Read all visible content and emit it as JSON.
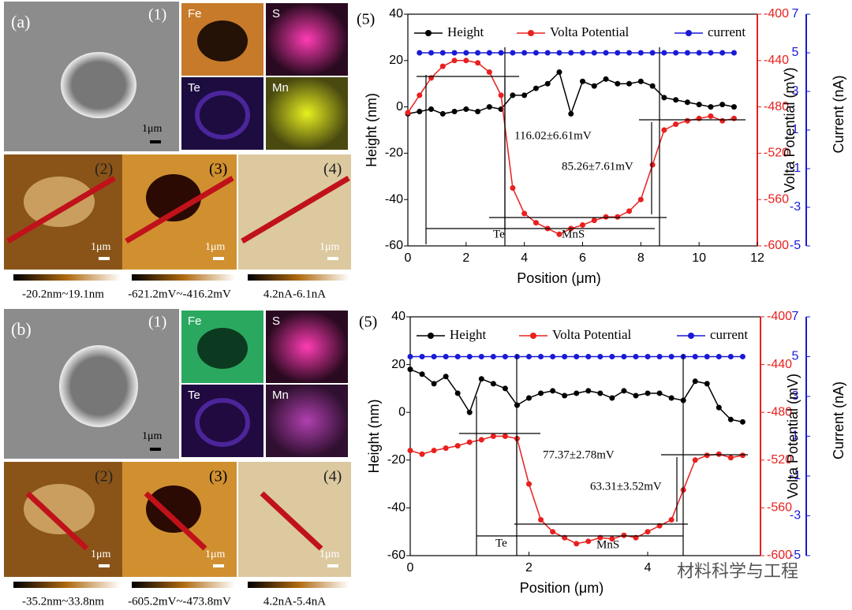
{
  "panels": [
    {
      "label": "(a)",
      "sem": "(1)",
      "maps": [
        "Fe",
        "S",
        "Te",
        "Mn"
      ],
      "scale": "1μm",
      "afm": [
        "(2)",
        "(3)",
        "(4)"
      ],
      "ranges": [
        "-20.2nm~19.1nm",
        "-621.2mV~-416.2mV",
        "4.2nA-6.1nA"
      ]
    },
    {
      "label": "(b)",
      "sem": "(1)",
      "maps": [
        "Fe",
        "S",
        "Te",
        "Mn"
      ],
      "scale": "1μm",
      "afm": [
        "(2)",
        "(3)",
        "(4)"
      ],
      "ranges": [
        "-35.2nm~33.8nm",
        "-605.2mV~-473.8mV",
        "4.2nA-5.4nA"
      ]
    }
  ],
  "watermark": "材料科学与工程",
  "chart_data": [
    {
      "type": "line",
      "panel": "(5)",
      "xlabel": "Position (μm)",
      "ylabel": "Height (nm)",
      "y2label": "Volta Potential (mV)",
      "y3label": "Current (nA)",
      "xlim": [
        0,
        12
      ],
      "xticks": [
        0,
        2,
        4,
        6,
        8,
        10,
        12
      ],
      "ylim": [
        -60,
        40
      ],
      "yticks": [
        -60,
        -40,
        -20,
        0,
        20,
        40
      ],
      "y2lim": [
        -600,
        -400
      ],
      "y2ticks": [
        -600,
        -560,
        -520,
        -480,
        -440,
        -400
      ],
      "y3lim": [
        -5,
        7
      ],
      "y3ticks": [
        -5,
        -3,
        -1,
        1,
        3,
        5,
        7
      ],
      "x": [
        0,
        0.4,
        0.8,
        1.2,
        1.6,
        2.0,
        2.4,
        2.8,
        3.2,
        3.6,
        4.0,
        4.4,
        4.8,
        5.2,
        5.6,
        6.0,
        6.4,
        6.8,
        7.2,
        7.6,
        8.0,
        8.4,
        8.8,
        9.2,
        9.6,
        10.0,
        10.4,
        10.8,
        11.2
      ],
      "series": [
        {
          "name": "Height",
          "color": "#000000",
          "axis": "y",
          "values": [
            -3,
            -2,
            -1,
            -3,
            -2,
            -1,
            -2,
            0,
            -1,
            5,
            5,
            8,
            10,
            15,
            -3,
            11,
            9,
            12,
            10,
            10,
            11,
            9,
            4,
            3,
            2,
            1,
            0,
            1,
            0
          ]
        },
        {
          "name": "Volta Potential",
          "color": "#e8201e",
          "axis": "y2",
          "values": [
            -485,
            -470,
            -455,
            -445,
            -440,
            -440,
            -442,
            -450,
            -470,
            -550,
            -572,
            -580,
            -585,
            -590,
            -585,
            -582,
            -578,
            -575,
            -575,
            -570,
            -560,
            -530,
            -500,
            -495,
            -492,
            -490,
            -488,
            -492,
            -490
          ]
        },
        {
          "name": "current",
          "color": "#1a1ad6",
          "axis": "y3",
          "values": [
            null,
            5,
            5,
            5,
            5,
            5,
            5,
            5,
            5,
            5,
            5,
            5,
            5,
            5,
            5,
            5,
            5,
            5,
            5,
            5,
            5,
            5,
            5,
            5,
            5,
            5,
            5,
            5,
            5
          ]
        }
      ],
      "annotations": [
        "116.02±6.61mV",
        "85.26±7.61mV",
        "Te",
        "MnS"
      ]
    },
    {
      "type": "line",
      "panel": "(5)",
      "xlabel": "Position (μm)",
      "ylabel": "Height (nm)",
      "y2label": "Volta Potential (mV)",
      "y3label": "Current (nA)",
      "xlim": [
        0,
        5.9
      ],
      "xticks": [
        0,
        2,
        4
      ],
      "ylim": [
        -60,
        40
      ],
      "yticks": [
        -60,
        -40,
        -20,
        0,
        20,
        40
      ],
      "y2lim": [
        -600,
        -400
      ],
      "y2ticks": [
        -600,
        -560,
        -520,
        -480,
        -440,
        -400
      ],
      "y3lim": [
        -5,
        7
      ],
      "y3ticks": [
        -5,
        -3,
        -1,
        1,
        3,
        5,
        7
      ],
      "x": [
        0,
        0.2,
        0.4,
        0.6,
        0.8,
        1.0,
        1.2,
        1.4,
        1.6,
        1.8,
        2.0,
        2.2,
        2.4,
        2.6,
        2.8,
        3.0,
        3.2,
        3.4,
        3.6,
        3.8,
        4.0,
        4.2,
        4.4,
        4.6,
        4.8,
        5.0,
        5.2,
        5.4,
        5.6
      ],
      "series": [
        {
          "name": "Height",
          "color": "#000000",
          "axis": "y",
          "values": [
            18,
            16,
            12,
            15,
            8,
            0,
            14,
            12,
            10,
            3,
            6,
            8,
            9,
            7,
            8,
            9,
            8,
            6,
            9,
            7,
            8,
            8,
            6,
            5,
            13,
            12,
            2,
            -3,
            -4
          ]
        },
        {
          "name": "Volta Potential",
          "color": "#e8201e",
          "axis": "y2",
          "values": [
            -512,
            -515,
            -512,
            -510,
            -508,
            -505,
            -503,
            -500,
            -500,
            -502,
            -540,
            -570,
            -580,
            -585,
            -590,
            -588,
            -585,
            -586,
            -583,
            -585,
            -580,
            -575,
            -570,
            -545,
            -520,
            -516,
            -515,
            -518,
            -516
          ]
        },
        {
          "name": "current",
          "color": "#1a1ad6",
          "axis": "y3",
          "values": [
            5,
            5,
            5,
            5,
            5,
            5,
            5,
            5,
            5,
            5,
            5,
            5,
            5,
            5,
            5,
            5,
            5,
            5,
            5,
            5,
            5,
            5,
            5,
            5,
            5,
            5,
            5,
            5,
            5
          ]
        }
      ],
      "annotations": [
        "77.37±2.78mV",
        "63.31±3.52mV",
        "Te",
        "MnS"
      ]
    }
  ]
}
